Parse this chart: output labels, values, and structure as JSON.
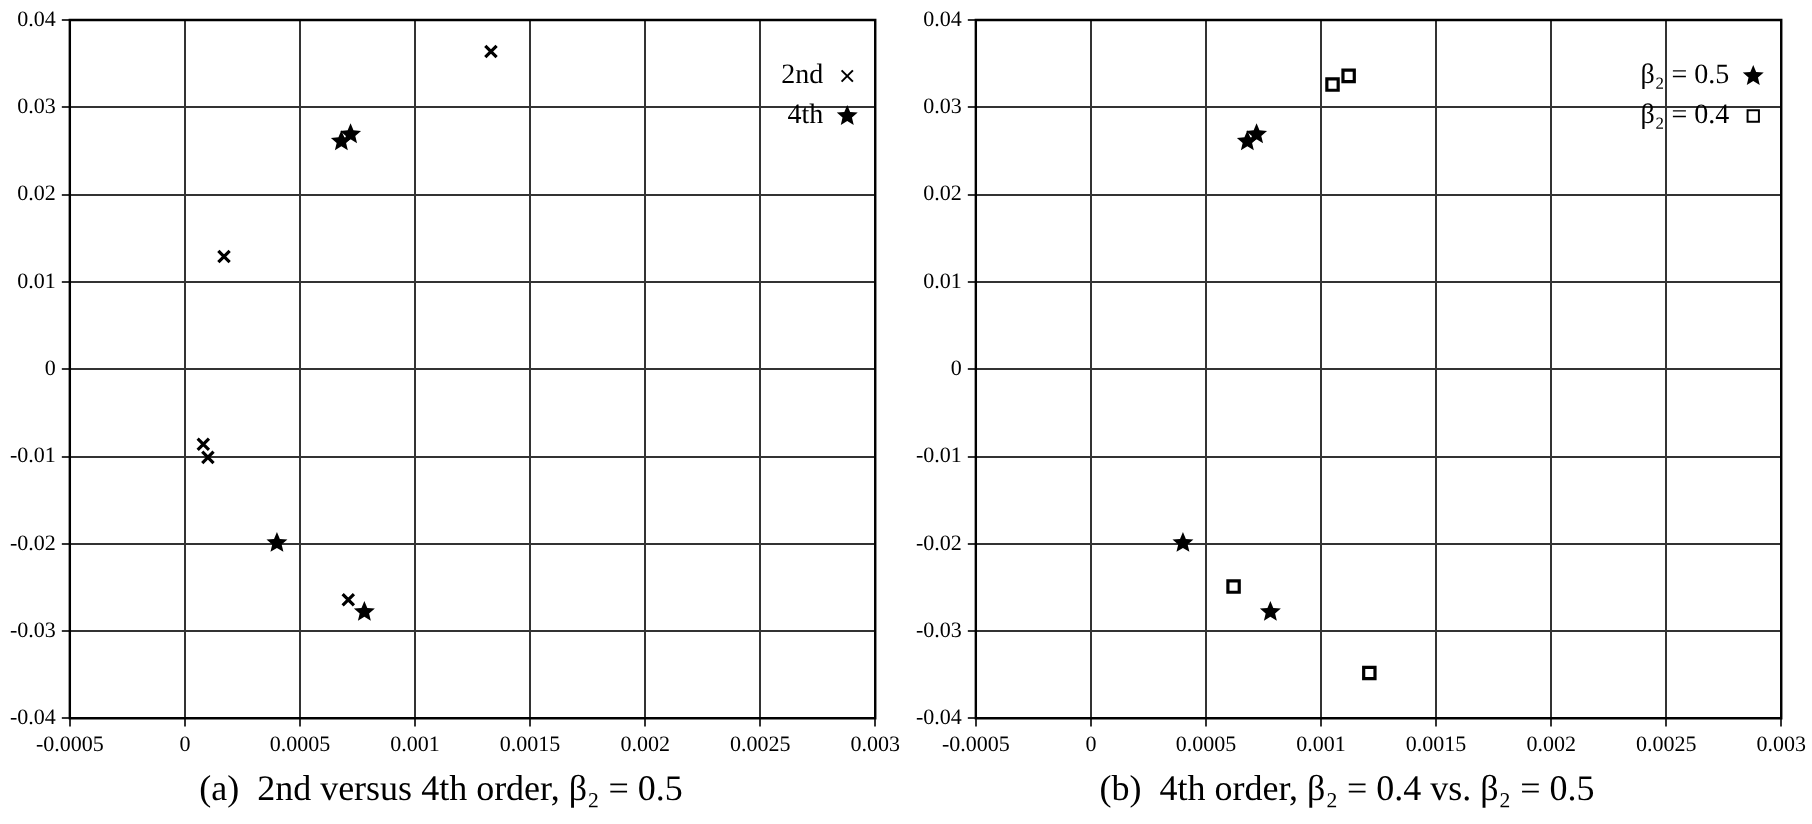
{
  "chart_data": [
    {
      "type": "scatter",
      "title": "(a)  2nd versus 4th order, β₂ = 0.5",
      "xlim": [
        -0.0005,
        0.003
      ],
      "xticks": [
        -0.0005,
        0,
        0.0005,
        0.001,
        0.0015,
        0.002,
        0.0025,
        0.003
      ],
      "ylim": [
        -0.04,
        0.04
      ],
      "yticks": [
        -0.04,
        -0.03,
        -0.02,
        -0.01,
        0,
        0.01,
        0.02,
        0.03,
        0.04
      ],
      "grid": true,
      "legend": "top right",
      "series": [
        {
          "name": "2nd",
          "color": "#000000",
          "marker": "cross",
          "x": [
            0.00133,
            0.00017,
            8e-05,
            0.0001,
            0.0004,
            0.00071
          ],
          "values": [
            0.0364,
            0.0129,
            -0.0086,
            -0.0101,
            null,
            -0.0264
          ]
        },
        {
          "name": "4th",
          "color": "#000000",
          "marker": "star",
          "x": [
            0.00068,
            0.00072,
            0.0004,
            0.00078
          ],
          "values": [
            0.0261,
            0.0269,
            -0.0199,
            -0.0278
          ]
        }
      ]
    },
    {
      "type": "scatter",
      "title": "(b)  4th order, β₂ = 0.4 vs. β₂ = 0.5",
      "xlim": [
        -0.0005,
        0.003
      ],
      "xticks": [
        -0.0005,
        0,
        0.0005,
        0.001,
        0.0015,
        0.002,
        0.0025,
        0.003
      ],
      "ylim": [
        -0.04,
        0.04
      ],
      "yticks": [
        -0.04,
        -0.03,
        -0.02,
        -0.01,
        0,
        0.01,
        0.02,
        0.03,
        0.04
      ],
      "grid": true,
      "legend": "top right",
      "series": [
        {
          "name": "β₂ = 0.5",
          "color": "#000000",
          "marker": "star",
          "x": [
            0.00068,
            0.00072,
            0.0004,
            0.00078
          ],
          "values": [
            0.0261,
            0.0269,
            -0.0199,
            -0.0278
          ]
        },
        {
          "name": "β₂ = 0.4",
          "color": "#000000",
          "marker": "square",
          "x": [
            0.00105,
            0.00112,
            0.00062,
            0.00121
          ],
          "values": [
            0.0326,
            0.0336,
            -0.0249,
            -0.0348
          ]
        }
      ]
    }
  ]
}
